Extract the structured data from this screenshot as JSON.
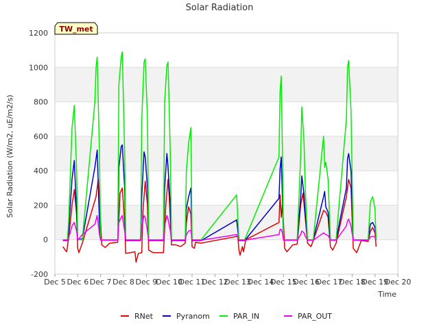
{
  "chart_data": {
    "type": "line",
    "title": "Solar Radiation",
    "xlabel": "Time",
    "ylabel": "Solar Radiation (W/m2, uE/m2/s)",
    "badge": "TW_met",
    "xlim": [
      5,
      20
    ],
    "ylim": [
      -200,
      1200
    ],
    "x_ticks": [
      5,
      6,
      7,
      8,
      9,
      10,
      11,
      12,
      13,
      14,
      15,
      16,
      17,
      18,
      19,
      20
    ],
    "x_tick_labels": [
      "Dec 5",
      "Dec 6",
      "Dec 7",
      "Dec 8",
      "Dec 9",
      "Dec 10",
      "Dec 11",
      "Dec 12",
      "Dec 13",
      "Dec 14",
      "Dec 15",
      "Dec 16",
      "Dec 17",
      "Dec 18",
      "Dec 19",
      "Dec 20"
    ],
    "y_ticks": [
      -200,
      0,
      200,
      400,
      600,
      800,
      1000,
      1200
    ],
    "y_tick_labels": [
      "-200",
      "0",
      "200",
      "400",
      "600",
      "800",
      "1000",
      "1200"
    ],
    "legend_position": "bottom-center",
    "series": [
      {
        "name": "RNet",
        "color": "#dd0000",
        "points": [
          [
            5.35,
            -40
          ],
          [
            5.45,
            -60
          ],
          [
            5.52,
            -70
          ],
          [
            5.6,
            10
          ],
          [
            5.75,
            200
          ],
          [
            5.85,
            290
          ],
          [
            5.95,
            150
          ],
          [
            6.0,
            -50
          ],
          [
            6.05,
            -75
          ],
          [
            6.2,
            -20
          ],
          [
            6.8,
            250
          ],
          [
            6.9,
            350
          ],
          [
            7.0,
            100
          ],
          [
            7.05,
            -30
          ],
          [
            7.2,
            -45
          ],
          [
            7.4,
            -20
          ],
          [
            7.75,
            -15
          ],
          [
            7.85,
            270
          ],
          [
            7.95,
            300
          ],
          [
            8.05,
            100
          ],
          [
            8.1,
            -80
          ],
          [
            8.3,
            -75
          ],
          [
            8.5,
            -70
          ],
          [
            8.55,
            -130
          ],
          [
            8.65,
            -80
          ],
          [
            8.8,
            -75
          ],
          [
            8.85,
            160
          ],
          [
            8.95,
            340
          ],
          [
            9.05,
            200
          ],
          [
            9.1,
            -60
          ],
          [
            9.3,
            -75
          ],
          [
            9.75,
            -75
          ],
          [
            9.85,
            200
          ],
          [
            9.95,
            350
          ],
          [
            10.0,
            250
          ],
          [
            10.1,
            -30
          ],
          [
            10.3,
            -30
          ],
          [
            10.5,
            -40
          ],
          [
            10.7,
            -20
          ],
          [
            10.75,
            100
          ],
          [
            10.85,
            190
          ],
          [
            10.95,
            150
          ],
          [
            11.0,
            -40
          ],
          [
            11.1,
            -50
          ],
          [
            11.15,
            -15
          ],
          [
            11.4,
            -20
          ],
          [
            13.0,
            20
          ],
          [
            13.05,
            -60
          ],
          [
            13.1,
            -90
          ],
          [
            13.2,
            -40
          ],
          [
            13.25,
            -70
          ],
          [
            13.35,
            0
          ],
          [
            14.8,
            100
          ],
          [
            14.85,
            260
          ],
          [
            14.9,
            130
          ],
          [
            14.95,
            200
          ],
          [
            15.0,
            100
          ],
          [
            15.05,
            -50
          ],
          [
            15.15,
            -70
          ],
          [
            15.4,
            -30
          ],
          [
            15.6,
            -25
          ],
          [
            15.75,
            200
          ],
          [
            15.85,
            270
          ],
          [
            15.95,
            130
          ],
          [
            16.05,
            -20
          ],
          [
            16.2,
            -40
          ],
          [
            16.3,
            -5
          ],
          [
            16.75,
            170
          ],
          [
            16.85,
            160
          ],
          [
            16.95,
            130
          ],
          [
            17.05,
            -40
          ],
          [
            17.15,
            -60
          ],
          [
            17.3,
            -20
          ],
          [
            17.75,
            250
          ],
          [
            17.85,
            350
          ],
          [
            17.95,
            300
          ],
          [
            18.05,
            -50
          ],
          [
            18.2,
            -75
          ],
          [
            18.4,
            -5
          ],
          [
            18.7,
            -10
          ],
          [
            18.8,
            50
          ],
          [
            18.9,
            70
          ],
          [
            19.0,
            40
          ],
          [
            19.05,
            -40
          ]
        ]
      },
      {
        "name": "Pyranom",
        "color": "#0000cc",
        "points": [
          [
            5.35,
            -5
          ],
          [
            5.55,
            -5
          ],
          [
            5.6,
            50
          ],
          [
            5.75,
            350
          ],
          [
            5.85,
            460
          ],
          [
            5.95,
            150
          ],
          [
            6.0,
            0
          ],
          [
            6.2,
            5
          ],
          [
            6.75,
            420
          ],
          [
            6.85,
            520
          ],
          [
            6.95,
            100
          ],
          [
            7.0,
            0
          ],
          [
            7.75,
            0
          ],
          [
            7.8,
            420
          ],
          [
            7.9,
            540
          ],
          [
            7.95,
            550
          ],
          [
            8.05,
            300
          ],
          [
            8.1,
            -5
          ],
          [
            8.75,
            -5
          ],
          [
            8.8,
            250
          ],
          [
            8.9,
            510
          ],
          [
            8.95,
            480
          ],
          [
            9.05,
            300
          ],
          [
            9.1,
            -5
          ],
          [
            9.75,
            -5
          ],
          [
            9.8,
            300
          ],
          [
            9.9,
            500
          ],
          [
            9.95,
            420
          ],
          [
            10.05,
            200
          ],
          [
            10.1,
            -5
          ],
          [
            10.7,
            -5
          ],
          [
            10.75,
            180
          ],
          [
            10.85,
            250
          ],
          [
            10.95,
            300
          ],
          [
            11.0,
            -5
          ],
          [
            11.4,
            -5
          ],
          [
            12.95,
            115
          ],
          [
            13.05,
            -5
          ],
          [
            13.3,
            -5
          ],
          [
            14.8,
            240
          ],
          [
            14.85,
            410
          ],
          [
            14.9,
            480
          ],
          [
            14.95,
            250
          ],
          [
            15.0,
            0
          ],
          [
            15.6,
            0
          ],
          [
            15.75,
            240
          ],
          [
            15.8,
            370
          ],
          [
            15.9,
            260
          ],
          [
            15.95,
            150
          ],
          [
            16.05,
            0
          ],
          [
            16.3,
            0
          ],
          [
            16.75,
            250
          ],
          [
            16.8,
            280
          ],
          [
            16.85,
            190
          ],
          [
            16.95,
            160
          ],
          [
            17.05,
            0
          ],
          [
            17.3,
            0
          ],
          [
            17.75,
            300
          ],
          [
            17.8,
            470
          ],
          [
            17.85,
            500
          ],
          [
            17.95,
            400
          ],
          [
            18.05,
            0
          ],
          [
            18.7,
            0
          ],
          [
            18.8,
            90
          ],
          [
            18.9,
            100
          ],
          [
            19.0,
            70
          ],
          [
            19.05,
            0
          ]
        ]
      },
      {
        "name": "PAR_IN",
        "color": "#00ee00",
        "points": [
          [
            5.35,
            0
          ],
          [
            5.55,
            0
          ],
          [
            5.6,
            100
          ],
          [
            5.75,
            650
          ],
          [
            5.85,
            780
          ],
          [
            5.95,
            400
          ],
          [
            6.0,
            0
          ],
          [
            6.2,
            0
          ],
          [
            6.75,
            800
          ],
          [
            6.8,
            1000
          ],
          [
            6.85,
            1060
          ],
          [
            6.95,
            500
          ],
          [
            7.0,
            0
          ],
          [
            7.75,
            0
          ],
          [
            7.8,
            900
          ],
          [
            7.9,
            1060
          ],
          [
            7.95,
            1090
          ],
          [
            8.05,
            500
          ],
          [
            8.1,
            0
          ],
          [
            8.75,
            0
          ],
          [
            8.8,
            700
          ],
          [
            8.9,
            1030
          ],
          [
            8.95,
            1050
          ],
          [
            9.05,
            700
          ],
          [
            9.1,
            0
          ],
          [
            9.75,
            0
          ],
          [
            9.8,
            800
          ],
          [
            9.9,
            1010
          ],
          [
            9.95,
            1030
          ],
          [
            10.05,
            500
          ],
          [
            10.1,
            0
          ],
          [
            10.7,
            0
          ],
          [
            10.75,
            400
          ],
          [
            10.85,
            560
          ],
          [
            10.95,
            650
          ],
          [
            11.0,
            0
          ],
          [
            11.4,
            0
          ],
          [
            12.95,
            260
          ],
          [
            13.05,
            0
          ],
          [
            13.3,
            0
          ],
          [
            14.8,
            480
          ],
          [
            14.85,
            860
          ],
          [
            14.9,
            950
          ],
          [
            14.95,
            520
          ],
          [
            15.0,
            0
          ],
          [
            15.6,
            0
          ],
          [
            15.75,
            480
          ],
          [
            15.8,
            770
          ],
          [
            15.9,
            560
          ],
          [
            15.95,
            300
          ],
          [
            16.05,
            0
          ],
          [
            16.3,
            0
          ],
          [
            16.75,
            600
          ],
          [
            16.8,
            420
          ],
          [
            16.85,
            450
          ],
          [
            16.95,
            350
          ],
          [
            17.05,
            0
          ],
          [
            17.3,
            0
          ],
          [
            17.75,
            700
          ],
          [
            17.8,
            1000
          ],
          [
            17.85,
            1040
          ],
          [
            17.95,
            750
          ],
          [
            18.05,
            0
          ],
          [
            18.7,
            0
          ],
          [
            18.8,
            220
          ],
          [
            18.9,
            250
          ],
          [
            19.0,
            180
          ],
          [
            19.05,
            0
          ]
        ]
      },
      {
        "name": "PAR_OUT",
        "color": "#ee00ee",
        "points": [
          [
            5.35,
            -3
          ],
          [
            5.55,
            -3
          ],
          [
            5.6,
            10
          ],
          [
            5.75,
            80
          ],
          [
            5.85,
            100
          ],
          [
            5.95,
            50
          ],
          [
            6.0,
            -3
          ],
          [
            6.2,
            30
          ],
          [
            6.75,
            90
          ],
          [
            6.85,
            140
          ],
          [
            6.95,
            30
          ],
          [
            7.0,
            -3
          ],
          [
            7.75,
            -3
          ],
          [
            7.8,
            100
          ],
          [
            7.9,
            130
          ],
          [
            7.95,
            140
          ],
          [
            8.05,
            50
          ],
          [
            8.1,
            -3
          ],
          [
            8.75,
            -3
          ],
          [
            8.8,
            80
          ],
          [
            8.9,
            140
          ],
          [
            8.95,
            130
          ],
          [
            9.05,
            50
          ],
          [
            9.1,
            -3
          ],
          [
            9.75,
            -3
          ],
          [
            9.8,
            80
          ],
          [
            9.9,
            140
          ],
          [
            9.95,
            120
          ],
          [
            10.05,
            50
          ],
          [
            10.1,
            -3
          ],
          [
            10.7,
            -3
          ],
          [
            10.75,
            30
          ],
          [
            10.85,
            50
          ],
          [
            10.95,
            55
          ],
          [
            11.0,
            -3
          ],
          [
            11.4,
            -3
          ],
          [
            12.95,
            30
          ],
          [
            13.05,
            -3
          ],
          [
            13.3,
            -3
          ],
          [
            14.8,
            30
          ],
          [
            14.85,
            60
          ],
          [
            14.9,
            60
          ],
          [
            14.95,
            40
          ],
          [
            15.0,
            -3
          ],
          [
            15.6,
            -3
          ],
          [
            15.75,
            30
          ],
          [
            15.8,
            50
          ],
          [
            15.9,
            40
          ],
          [
            15.95,
            20
          ],
          [
            16.05,
            -3
          ],
          [
            16.3,
            -3
          ],
          [
            16.75,
            40
          ],
          [
            16.8,
            35
          ],
          [
            16.85,
            30
          ],
          [
            16.95,
            25
          ],
          [
            17.05,
            -3
          ],
          [
            17.3,
            -3
          ],
          [
            17.75,
            80
          ],
          [
            17.8,
            110
          ],
          [
            17.85,
            120
          ],
          [
            17.95,
            80
          ],
          [
            18.05,
            -3
          ],
          [
            18.7,
            -3
          ],
          [
            18.8,
            15
          ],
          [
            18.9,
            20
          ],
          [
            19.0,
            15
          ],
          [
            19.05,
            -3
          ]
        ]
      }
    ]
  }
}
